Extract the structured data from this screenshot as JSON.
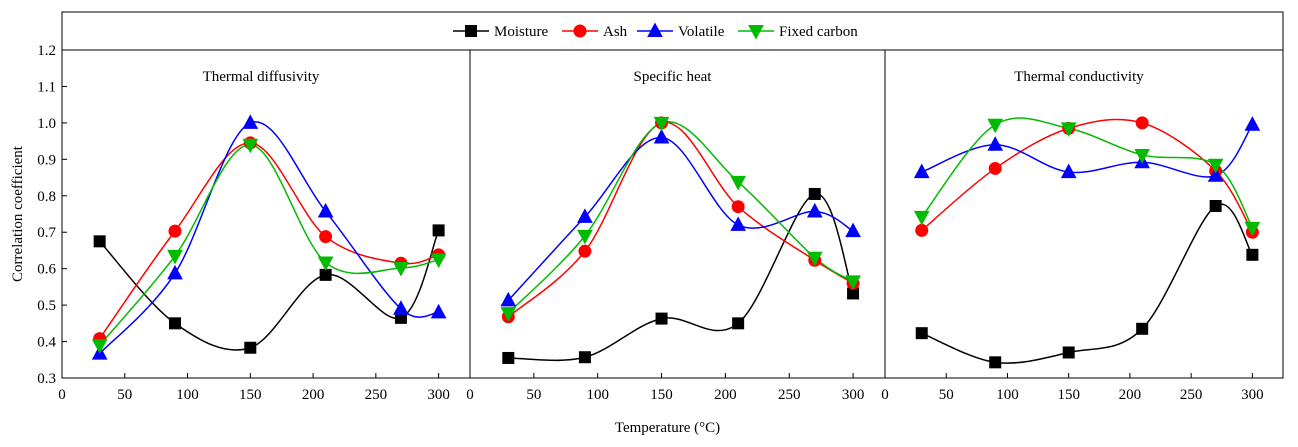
{
  "chart_data": {
    "type": "line",
    "ylabel": "Correlation coefficient",
    "xlabel": "Temperature (°C)",
    "ylim": [
      0.3,
      1.2
    ],
    "yticks": [
      "0.3",
      "0.4",
      "0.5",
      "0.6",
      "0.7",
      "0.8",
      "0.9",
      "1.0",
      "1.1",
      "1.2"
    ],
    "legend": {
      "placement": "top-center",
      "entries": [
        {
          "name": "Moisture",
          "color": "#000000",
          "marker": "square"
        },
        {
          "name": "Ash",
          "color": "#ff0000",
          "marker": "circle"
        },
        {
          "name": "Volatile",
          "color": "#0000ff",
          "marker": "triangle-up"
        },
        {
          "name": "Fixed carbon",
          "color": "#00bb00",
          "marker": "triangle-down"
        }
      ]
    },
    "x": [
      30,
      90,
      150,
      210,
      270,
      300
    ],
    "panels": [
      {
        "title": "Thermal diffusivity",
        "xlim": [
          0,
          325
        ],
        "xticks": [
          "0",
          "50",
          "100",
          "150",
          "200",
          "250",
          "300"
        ],
        "series": [
          {
            "name": "Moisture",
            "values": [
              0.675,
              0.45,
              0.383,
              0.583,
              0.465,
              0.705
            ]
          },
          {
            "name": "Ash",
            "values": [
              0.408,
              0.703,
              0.945,
              0.688,
              0.615,
              0.638
            ]
          },
          {
            "name": "Volatile",
            "values": [
              0.367,
              0.587,
              1.0,
              0.757,
              0.49,
              0.48
            ]
          },
          {
            "name": "Fixed carbon",
            "values": [
              0.39,
              0.635,
              0.94,
              0.617,
              0.602,
              0.625
            ]
          }
        ]
      },
      {
        "title": "Specific heat",
        "xlim": [
          0,
          325
        ],
        "xticks": [
          "0",
          "50",
          "100",
          "150",
          "200",
          "250",
          "300"
        ],
        "series": [
          {
            "name": "Moisture",
            "values": [
              0.355,
              0.357,
              0.463,
              0.45,
              0.805,
              0.532
            ]
          },
          {
            "name": "Ash",
            "values": [
              0.468,
              0.648,
              1.0,
              0.77,
              0.623,
              0.56
            ]
          },
          {
            "name": "Volatile",
            "values": [
              0.513,
              0.742,
              0.96,
              0.72,
              0.757,
              0.703
            ]
          },
          {
            "name": "Fixed carbon",
            "values": [
              0.478,
              0.69,
              1.0,
              0.838,
              0.63,
              0.565
            ]
          }
        ]
      },
      {
        "title": "Thermal conductivity",
        "xlim": [
          0,
          325
        ],
        "xticks": [
          "0",
          "50",
          "100",
          "150",
          "200",
          "250",
          "300"
        ],
        "series": [
          {
            "name": "Moisture",
            "values": [
              0.423,
              0.343,
              0.37,
              0.435,
              0.772,
              0.638
            ]
          },
          {
            "name": "Ash",
            "values": [
              0.705,
              0.875,
              0.985,
              1.0,
              0.868,
              0.7
            ]
          },
          {
            "name": "Volatile",
            "values": [
              0.865,
              0.94,
              0.865,
              0.892,
              0.855,
              0.995
            ]
          },
          {
            "name": "Fixed carbon",
            "values": [
              0.742,
              0.995,
              0.985,
              0.912,
              0.885,
              0.712
            ]
          }
        ]
      }
    ]
  }
}
